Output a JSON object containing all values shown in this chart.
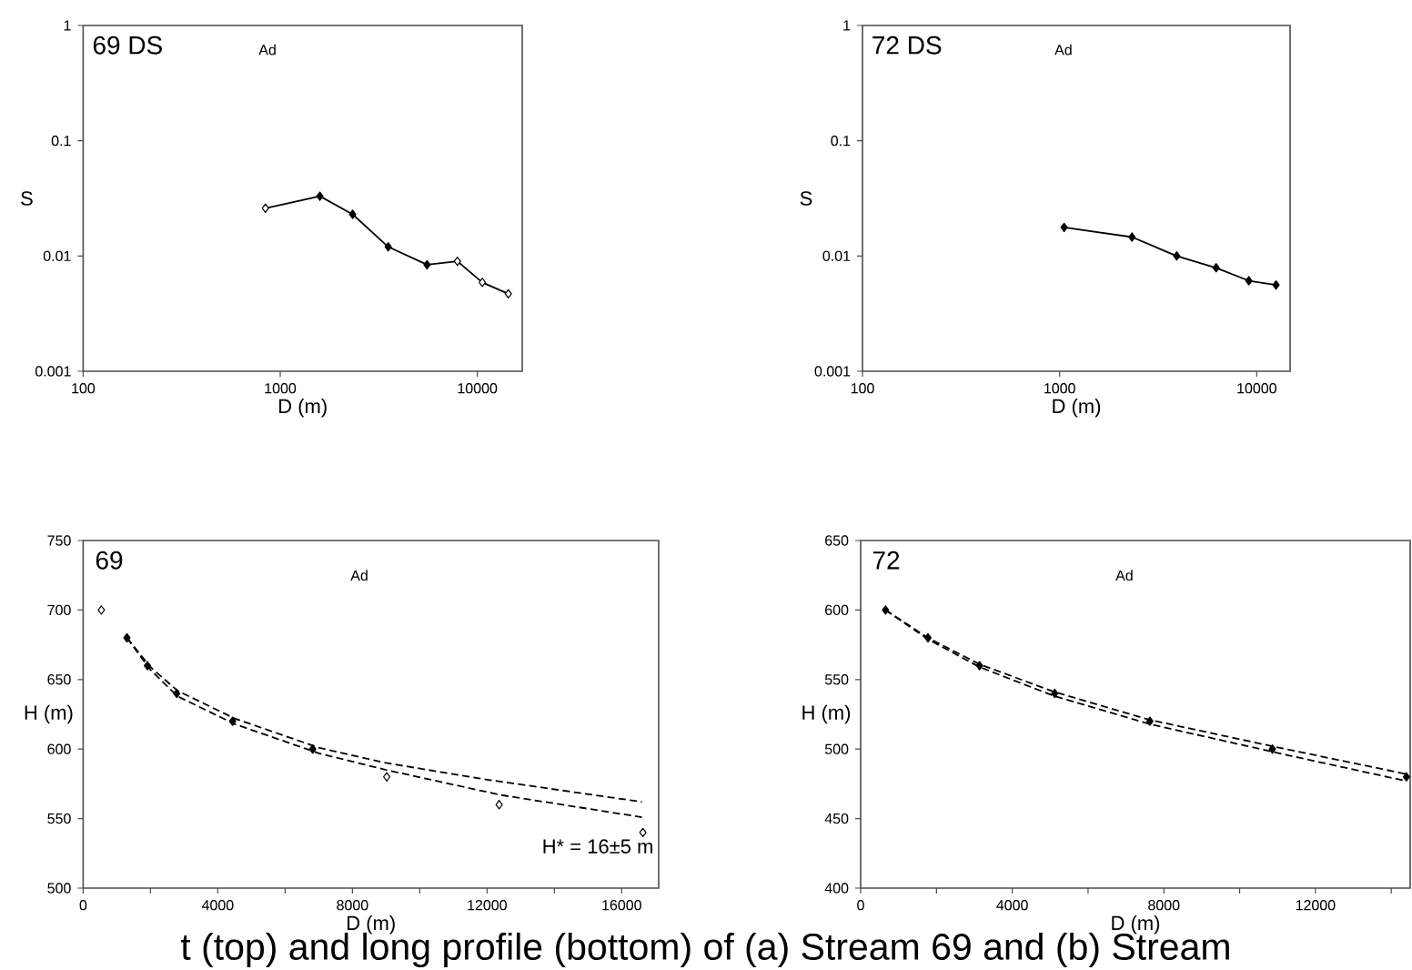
{
  "chart_data": [
    {
      "type": "line",
      "title": "69 DS",
      "xlabel": "D (m)",
      "ylabel": "S",
      "annotations": [
        "Ad"
      ],
      "log": "xy",
      "xlim": [
        100,
        16900
      ],
      "ylim": [
        0.001,
        1
      ],
      "xticks": [
        100,
        1000,
        10000
      ],
      "yticks": [
        0.001,
        0.01,
        0.1,
        1
      ],
      "series": [
        {
          "type": "line",
          "color": "#000000",
          "marker": "none",
          "line_style": "solid",
          "x": [
            841,
            1589,
            2329,
            3532,
            5556,
            7925,
            10600,
            14360
          ],
          "values": [
            0.026,
            0.033,
            0.023,
            0.012,
            0.0084,
            0.009,
            0.0059,
            0.0047
          ]
        },
        {
          "type": "scatter",
          "color": "#000000",
          "marker": "diamond",
          "x": [
            1589,
            2329,
            3532,
            5556
          ],
          "values": [
            0.033,
            0.023,
            0.012,
            0.0084
          ]
        },
        {
          "type": "scatter",
          "color": "#ffffff",
          "marker": "diamond",
          "x": [
            841,
            7925,
            10600,
            14360
          ],
          "values": [
            0.026,
            0.009,
            0.0059,
            0.0047
          ]
        }
      ]
    },
    {
      "type": "line",
      "title": "72 DS",
      "xlabel": "D (m)",
      "ylabel": "S",
      "annotations": [
        "Ad"
      ],
      "log": "xy",
      "xlim": [
        100,
        14770
      ],
      "ylim": [
        0.001,
        1
      ],
      "xticks": [
        100,
        1000,
        10000
      ],
      "yticks": [
        0.001,
        0.01,
        0.1,
        1
      ],
      "series": [
        {
          "type": "line",
          "color": "#000000",
          "marker": "diamond",
          "line_style": "solid",
          "x": [
            1054,
            2329,
            3928,
            6223,
            9120,
            12530
          ],
          "values": [
            0.0177,
            0.0146,
            0.01,
            0.0079,
            0.0061,
            0.0056
          ]
        }
      ]
    },
    {
      "type": "line",
      "title": "69",
      "xlabel": "D (m)",
      "ylabel": "H (m)",
      "annotations": [
        "Ad",
        "H* = 16±5 m"
      ],
      "xlim": [
        0,
        17100
      ],
      "ylim": [
        500,
        750
      ],
      "xticks": [
        0,
        {
          "value": 2000,
          "label": null
        },
        4000,
        {
          "value": 6000,
          "label": null
        },
        8000,
        {
          "value": 10000,
          "label": null
        },
        12000,
        {
          "value": 14000,
          "label": null
        },
        16000
      ],
      "yticks": [
        500,
        550,
        600,
        650,
        700,
        750
      ],
      "series": [
        {
          "type": "line",
          "color": "#000000",
          "marker": "none",
          "line_style": "dashed",
          "x": [
            1300,
            2000,
            2800,
            4500,
            7000,
            9000,
            12000,
            16600
          ],
          "values": [
            680,
            659,
            642,
            622,
            601,
            590,
            578,
            562
          ]
        },
        {
          "type": "line",
          "color": "#000000",
          "marker": "none",
          "line_style": "dashed",
          "x": [
            1300,
            2000,
            2800,
            4500,
            7000,
            9000,
            12400,
            16600
          ],
          "values": [
            680,
            657,
            638,
            618,
            597,
            585,
            567,
            551
          ]
        },
        {
          "type": "scatter",
          "color": "#000000",
          "marker": "diamond",
          "x": [
            1300,
            1910,
            2780,
            4440,
            6820
          ],
          "values": [
            680,
            660,
            640,
            620,
            600
          ]
        },
        {
          "type": "scatter",
          "color": "#ffffff",
          "marker": "diamond",
          "x": [
            540,
            9020,
            12360,
            16630
          ],
          "values": [
            700,
            580,
            560,
            540
          ]
        }
      ]
    },
    {
      "type": "line",
      "title": "72",
      "xlabel": "D (m)",
      "ylabel": "H (m)",
      "annotations": [
        "Ad",
        "t (top) and long profile (bottom) of (a) Stream 69 and (b) Stream"
      ],
      "xlim": [
        0,
        14500
      ],
      "ylim": [
        400,
        650
      ],
      "xticks": [
        0,
        {
          "value": 2000,
          "label": null
        },
        4000,
        {
          "value": 6000,
          "label": null
        },
        8000,
        {
          "value": 10000,
          "label": null
        },
        12000,
        {
          "value": 14000,
          "label": null
        }
      ],
      "yticks": [
        400,
        450,
        500,
        550,
        600,
        650
      ],
      "series": [
        {
          "type": "line",
          "color": "#000000",
          "marker": "none",
          "line_style": "dashed",
          "x": [
            656,
            1776,
            3136,
            5120,
            7632,
            10864,
            14400
          ],
          "values": [
            600,
            580,
            561,
            541,
            521,
            502,
            482
          ]
        },
        {
          "type": "line",
          "color": "#000000",
          "marker": "none",
          "line_style": "dashed",
          "x": [
            656,
            1776,
            3136,
            5120,
            7632,
            10864,
            14400
          ],
          "values": [
            600,
            579,
            559,
            538,
            518,
            498,
            477
          ]
        },
        {
          "type": "scatter",
          "color": "#000000",
          "marker": "diamond",
          "x": [
            656,
            1776,
            3136,
            5120,
            7632,
            10864,
            14400
          ],
          "values": [
            600,
            580,
            560,
            540,
            520,
            500,
            480
          ]
        }
      ]
    }
  ]
}
